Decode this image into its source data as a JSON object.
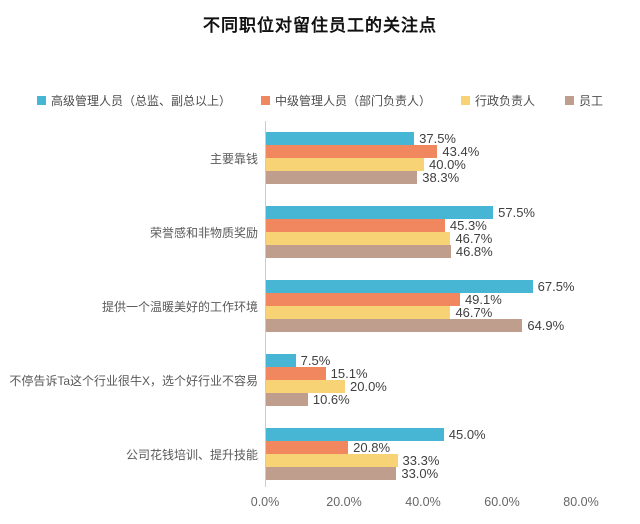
{
  "title": "不同职位对留住员工的关注点",
  "colors": {
    "series_senior": "#47b6d5",
    "series_middle": "#f1875f",
    "series_admin": "#f8d376",
    "series_staff": "#bf9e8d",
    "axis_line": "#cccccc",
    "category_label": "#595959",
    "value_label": "#404040",
    "tick_label": "#666666"
  },
  "chart_data": {
    "type": "bar",
    "orientation": "horizontal",
    "title": "不同职位对留住员工的关注点",
    "categories": [
      "主要靠钱",
      "荣誉感和非物质奖励",
      "提供一个温暖美好的工作环境",
      "不停告诉Ta这个行业很牛X，选个好行业不容易",
      "公司花钱培训、提升技能"
    ],
    "series": [
      {
        "name": "高级管理人员（总监、副总以上）",
        "color": "#47b6d5",
        "values": [
          37.5,
          57.5,
          67.5,
          7.5,
          45.0
        ]
      },
      {
        "name": "中级管理人员（部门负责人）",
        "color": "#f1875f",
        "values": [
          43.4,
          45.3,
          49.1,
          15.1,
          20.8
        ]
      },
      {
        "name": "行政负责人",
        "color": "#f8d376",
        "values": [
          40.0,
          46.7,
          46.7,
          20.0,
          33.3
        ]
      },
      {
        "name": "员工",
        "color": "#bf9e8d",
        "values": [
          38.3,
          46.8,
          64.9,
          10.6,
          33.0
        ]
      }
    ],
    "value_labels": [
      [
        "37.5%",
        "57.5%",
        "67.5%",
        "7.5%",
        "45.0%"
      ],
      [
        "43.4%",
        "45.3%",
        "49.1%",
        "15.1%",
        "20.8%"
      ],
      [
        "40.0%",
        "46.7%",
        "46.7%",
        "20.0%",
        "33.3%"
      ],
      [
        "38.3%",
        "46.8%",
        "64.9%",
        "10.6%",
        "33.0%"
      ]
    ],
    "x_ticks": [
      "0.0%",
      "20.0%",
      "40.0%",
      "60.0%",
      "80.0%"
    ],
    "x_tick_values": [
      0,
      20,
      40,
      60,
      80
    ],
    "xlim": [
      0,
      80
    ],
    "grid": false,
    "legend_position": "top"
  }
}
